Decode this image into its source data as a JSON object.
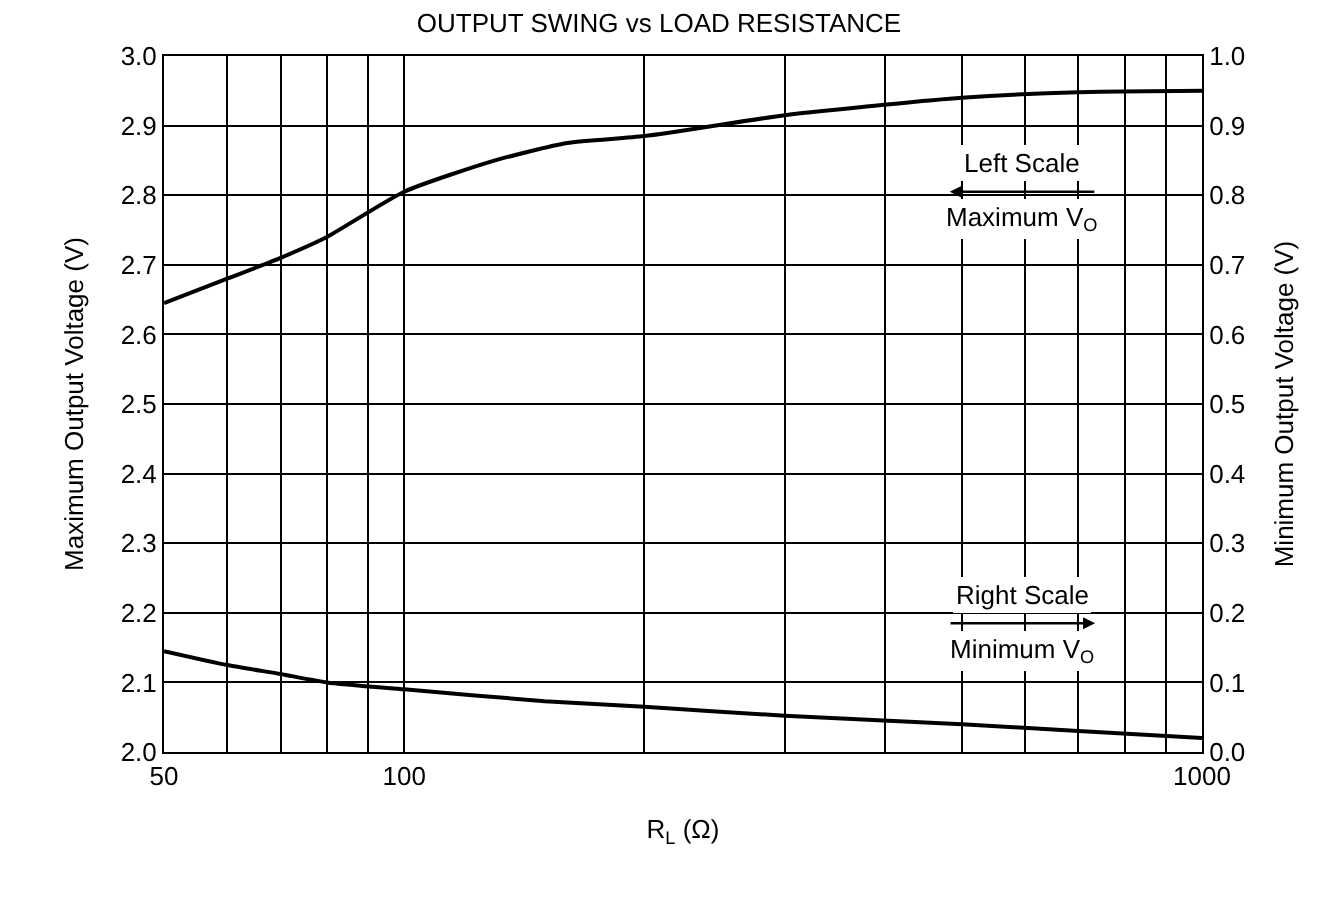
{
  "chart_data": {
    "type": "line",
    "title": "OUTPUT SWING vs LOAD RESISTANCE",
    "xlabel": "R$_{L}$ (Ω)",
    "ylabel": "Maximum Output Voltage (V)",
    "y2label": "Minimum Output Voltage (V)",
    "log": "x",
    "grid": true,
    "legend": false,
    "marker": "none",
    "line_style": "solid",
    "xlim": [
      50,
      1000
    ],
    "xticks": [
      50,
      {
        "value": 60,
        "label": null
      },
      {
        "value": 70,
        "label": null
      },
      {
        "value": 80,
        "label": null
      },
      {
        "value": 90,
        "label": null
      },
      100,
      {
        "value": 200,
        "label": null
      },
      {
        "value": 300,
        "label": null
      },
      {
        "value": 400,
        "label": null
      },
      {
        "value": 500,
        "label": null
      },
      {
        "value": 600,
        "label": null
      },
      {
        "value": 700,
        "label": null
      },
      {
        "value": 800,
        "label": null
      },
      {
        "value": 900,
        "label": null
      },
      1000
    ],
    "ylim": [
      2.0,
      3.0
    ],
    "yticks": [
      {
        "value": 2,
        "label": "2.0"
      },
      2.1,
      2.2,
      2.3,
      2.4,
      2.5,
      2.6,
      2.7,
      2.8,
      2.9,
      {
        "value": 3,
        "label": "3.0"
      }
    ],
    "y2lim": [
      0.0,
      1.0
    ],
    "y2ticks": [
      {
        "value": 0,
        "label": "0.0"
      },
      0.1,
      0.2,
      0.3,
      0.4,
      0.5,
      0.6,
      0.7,
      0.8,
      0.9,
      {
        "value": 1,
        "label": "1.0"
      }
    ],
    "series": [
      {
        "color": "#000000",
        "x": [
          50,
          60,
          70,
          80,
          100,
          130,
          160,
          200,
          300,
          400,
          500,
          700,
          1000
        ],
        "values": [
          2.645,
          2.68,
          2.71,
          2.74,
          2.805,
          2.85,
          2.875,
          2.885,
          2.915,
          2.93,
          2.94,
          2.948,
          2.95
        ]
      },
      {
        "color": "#000000",
        "axis": "y2",
        "x": [
          50,
          60,
          70,
          80,
          100,
          150,
          200,
          300,
          500,
          700,
          1000
        ],
        "values": [
          0.145,
          0.125,
          0.112,
          0.1,
          0.09,
          0.073,
          0.065,
          0.052,
          0.04,
          0.03,
          0.02
        ]
      }
    ],
    "annotations": [
      "Left Scale",
      "Maximum V$_{O}$",
      "Right Scale",
      "Minimum V$_{O}$"
    ]
  }
}
